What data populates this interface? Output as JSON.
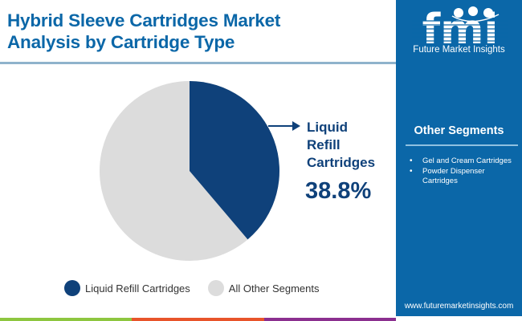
{
  "header": {
    "title_line1": "Hybrid Sleeve Cartridges Market",
    "title_line2": "Analysis by Cartridge Type"
  },
  "logo": {
    "mark": "fmi",
    "name": "Future Market Insights"
  },
  "sidebar": {
    "title": "Other Segments",
    "items": [
      {
        "label": "Gel and Cream Cartridges"
      },
      {
        "label": "Powder Dispenser Cartridges"
      }
    ],
    "url": "www.futuremarketinsights.com"
  },
  "callout": {
    "label_line1": "Liquid",
    "label_line2": "Refill",
    "label_line3": "Cartridges",
    "value": "38.8%"
  },
  "legend": [
    {
      "label": "Liquid Refill Cartridges",
      "color": "#0f417a"
    },
    {
      "label": "All Other Segments",
      "color": "#dcdcdc"
    }
  ],
  "colors": {
    "brand_blue": "#0b67a8",
    "highlight": "#0f417a",
    "other": "#dcdcdc",
    "bar_green": "#8dc63f",
    "bar_orange": "#e8542a",
    "bar_purple": "#8b2f8f"
  },
  "chart_data": {
    "type": "pie",
    "title": "Hybrid Sleeve Cartridges Market Analysis by Cartridge Type",
    "categories": [
      "Liquid Refill Cartridges",
      "All Other Segments"
    ],
    "values": [
      38.8,
      61.2
    ],
    "unit": "%",
    "colors": [
      "#0f417a",
      "#dcdcdc"
    ],
    "start_angle": "12 o'clock, clockwise",
    "annotations": [
      {
        "target": "Liquid Refill Cartridges",
        "text": "Liquid Refill Cartridges 38.8%"
      }
    ],
    "legend_position": "bottom"
  }
}
